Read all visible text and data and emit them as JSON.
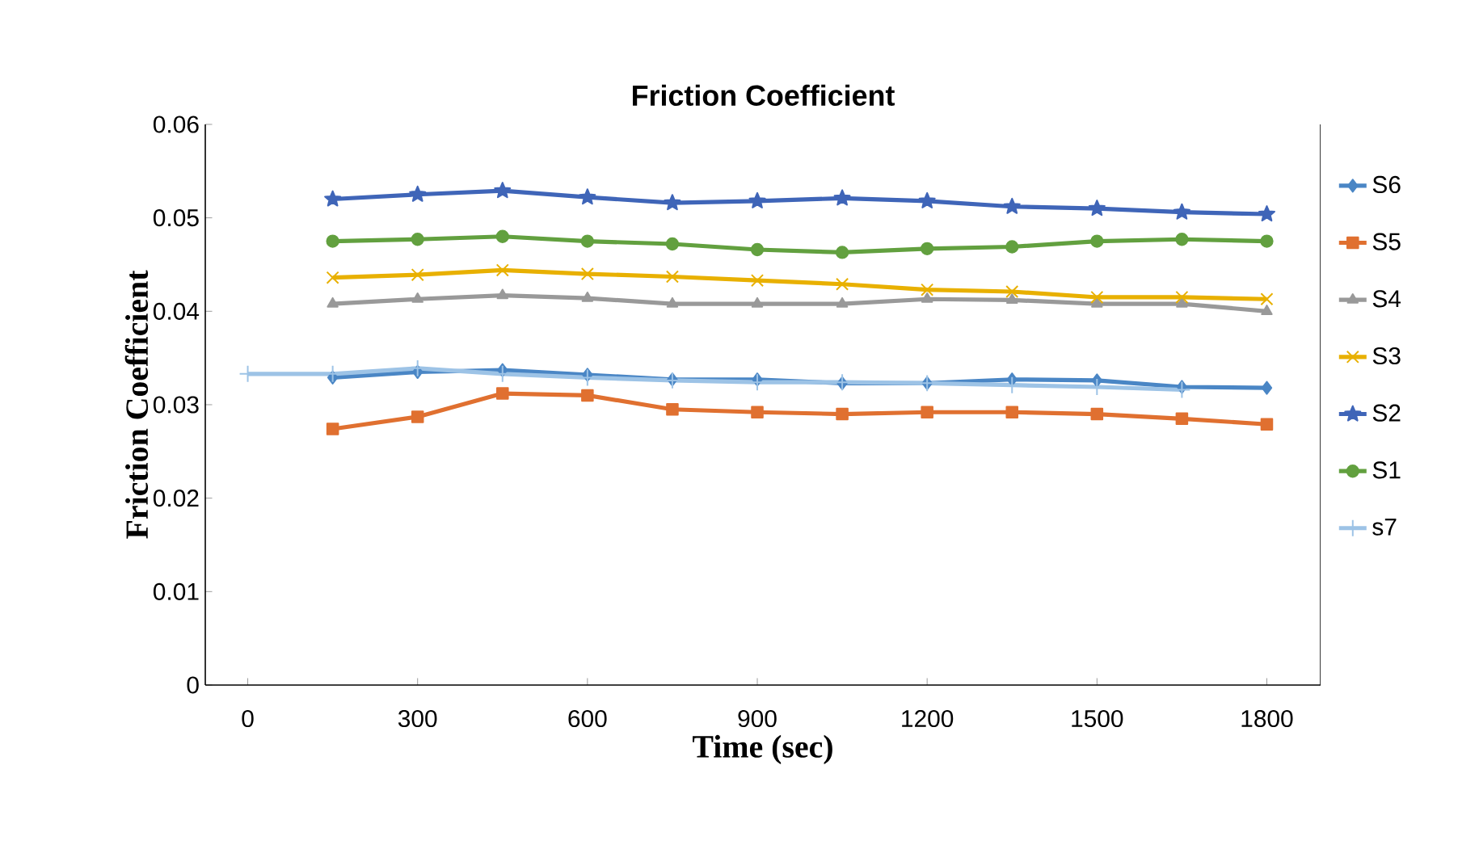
{
  "chart_data": {
    "type": "line",
    "title": "Friction Coefficient",
    "xlabel": "Time (sec)",
    "ylabel": "Friction Coefficient",
    "xlim": [
      -75,
      1895
    ],
    "xticks": [
      0,
      300,
      600,
      900,
      1200,
      1500,
      1800
    ],
    "ylim": [
      0,
      0.06
    ],
    "yticks": [
      0,
      0.01,
      0.02,
      0.03,
      0.04,
      0.05,
      0.06
    ],
    "x": [
      150,
      300,
      450,
      600,
      750,
      900,
      1050,
      1200,
      1350,
      1500,
      1650,
      1800
    ],
    "legend": "right",
    "grid": false,
    "series": [
      {
        "name": "S6",
        "color": "#4a86c5",
        "marker": "diamond",
        "values": [
          0.0329,
          0.0335,
          0.0337,
          0.0332,
          0.0327,
          0.0327,
          0.0323,
          0.0323,
          0.0327,
          0.0326,
          0.0319,
          0.0318
        ]
      },
      {
        "name": "S5",
        "color": "#e07030",
        "marker": "square",
        "values": [
          0.0274,
          0.0287,
          0.0312,
          0.031,
          0.0295,
          0.0292,
          0.029,
          0.0292,
          0.0292,
          0.029,
          0.0285,
          0.0279
        ]
      },
      {
        "name": "S4",
        "color": "#999999",
        "marker": "triangle",
        "values": [
          0.0408,
          0.0413,
          0.0417,
          0.0414,
          0.0408,
          0.0408,
          0.0408,
          0.0413,
          0.0412,
          0.0408,
          0.0408,
          0.04
        ]
      },
      {
        "name": "S3",
        "color": "#e8b000",
        "marker": "cross",
        "values": [
          0.0436,
          0.0439,
          0.0444,
          0.044,
          0.0437,
          0.0433,
          0.0429,
          0.0423,
          0.0421,
          0.0415,
          0.0415,
          0.0413
        ]
      },
      {
        "name": "S2",
        "color": "#3f65b8",
        "marker": "star",
        "values": [
          0.052,
          0.0525,
          0.0529,
          0.0522,
          0.0516,
          0.0518,
          0.0521,
          0.0518,
          0.0512,
          0.051,
          0.0506,
          0.0504
        ]
      },
      {
        "name": "S1",
        "color": "#62a03f",
        "marker": "circle",
        "values": [
          0.0475,
          0.0477,
          0.048,
          0.0475,
          0.0472,
          0.0466,
          0.0463,
          0.0467,
          0.0469,
          0.0475,
          0.0477,
          0.0475
        ]
      },
      {
        "name": "s7",
        "color": "#9dc3e6",
        "marker": "plus",
        "x": [
          0,
          150,
          300,
          450,
          600,
          750,
          900,
          1050,
          1200,
          1350,
          1500,
          1650
        ],
        "values": [
          0.0333,
          0.0333,
          0.0339,
          0.0333,
          0.0329,
          0.0326,
          0.0324,
          0.0324,
          0.0323,
          0.0321,
          0.0319,
          0.0316
        ]
      }
    ]
  }
}
